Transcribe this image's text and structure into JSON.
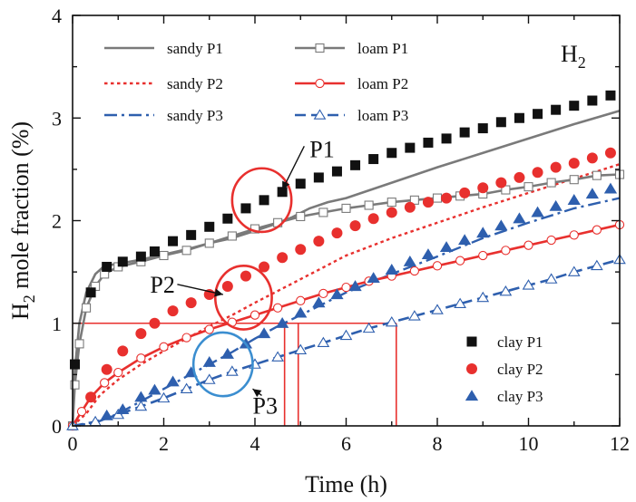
{
  "chart_data": {
    "type": "line",
    "title": "H2",
    "title_sub": "2",
    "xlabel": "Time (h)",
    "ylabel": "H",
    "ylabel_sub": "2",
    "ylabel_rest": " mole fraction (%)",
    "xlim": [
      0,
      12
    ],
    "ylim": [
      0,
      4
    ],
    "xticks": [
      0,
      2,
      4,
      6,
      8,
      10,
      12
    ],
    "yticks": [
      0,
      1,
      2,
      3,
      4
    ],
    "xtick_labels": [
      "0",
      "2",
      "4",
      "6",
      "8",
      "10",
      "12"
    ],
    "ytick_labels": [
      "0",
      "1",
      "2",
      "3",
      "4"
    ],
    "series": [
      {
        "name": "sandy P1",
        "label": "sandy P1",
        "style": "solid",
        "color": "#7a7a7a",
        "x": [
          0,
          0.05,
          0.15,
          0.3,
          0.5,
          0.7,
          1.0,
          1.5,
          2.0,
          2.5,
          3.0,
          3.5,
          4.0,
          4.4,
          4.8,
          5.2,
          5.6,
          6.0,
          7,
          8,
          9,
          10,
          11,
          12
        ],
        "y": [
          0,
          0.55,
          1.0,
          1.3,
          1.48,
          1.56,
          1.58,
          1.62,
          1.67,
          1.72,
          1.78,
          1.83,
          1.9,
          1.96,
          2.03,
          2.12,
          2.18,
          2.22,
          2.37,
          2.52,
          2.66,
          2.8,
          2.94,
          3.07
        ]
      },
      {
        "name": "sandy P2",
        "label": "sandy P2",
        "style": "dot",
        "color": "#e8302e",
        "x": [
          0,
          0.3,
          0.6,
          1.0,
          1.5,
          2.0,
          2.5,
          3.0,
          3.5,
          4.0,
          5,
          6,
          7,
          8,
          9,
          10,
          11,
          12
        ],
        "y": [
          0,
          0.12,
          0.3,
          0.45,
          0.6,
          0.73,
          0.85,
          0.97,
          1.08,
          1.2,
          1.43,
          1.66,
          1.83,
          1.98,
          2.13,
          2.27,
          2.41,
          2.55
        ]
      },
      {
        "name": "sandy P3",
        "label": "sandy P3",
        "style": "dashdot",
        "color": "#2e5fae",
        "x": [
          0,
          0.5,
          1,
          1.5,
          2,
          2.5,
          3,
          3.5,
          4,
          4.5,
          5,
          6,
          7,
          8,
          9,
          10,
          11,
          12
        ],
        "y": [
          0,
          0.03,
          0.12,
          0.24,
          0.36,
          0.48,
          0.6,
          0.72,
          0.85,
          0.97,
          1.08,
          1.3,
          1.48,
          1.65,
          1.83,
          1.98,
          2.12,
          2.22
        ]
      },
      {
        "name": "loam P1",
        "label": "loam P1",
        "style": "solid-square-open",
        "color": "#7a7a7a",
        "x": [
          0,
          0.05,
          0.15,
          0.3,
          0.5,
          0.7,
          1.0,
          1.5,
          2.0,
          2.5,
          3.0,
          3.5,
          4.0,
          4.5,
          5,
          5.5,
          6,
          6.5,
          7,
          7.5,
          8,
          8.5,
          9,
          9.5,
          10,
          10.5,
          11,
          11.5,
          12
        ],
        "y": [
          0,
          0.4,
          0.8,
          1.15,
          1.36,
          1.48,
          1.55,
          1.6,
          1.66,
          1.71,
          1.78,
          1.85,
          1.92,
          1.98,
          2.04,
          2.08,
          2.12,
          2.15,
          2.18,
          2.2,
          2.22,
          2.24,
          2.26,
          2.3,
          2.33,
          2.37,
          2.4,
          2.44,
          2.45
        ]
      },
      {
        "name": "loam P2",
        "label": "loam P2",
        "style": "solid-circle-open",
        "color": "#e8302e",
        "x": [
          0,
          0.2,
          0.4,
          0.7,
          1.0,
          1.5,
          2.0,
          2.5,
          3.0,
          3.5,
          4.0,
          4.5,
          5,
          5.5,
          6,
          6.5,
          7,
          7.5,
          8,
          8.5,
          9,
          9.5,
          10,
          10.5,
          11,
          11.5,
          12
        ],
        "y": [
          0,
          0.14,
          0.28,
          0.42,
          0.52,
          0.66,
          0.77,
          0.86,
          0.94,
          1.01,
          1.08,
          1.15,
          1.22,
          1.29,
          1.35,
          1.41,
          1.46,
          1.51,
          1.56,
          1.61,
          1.66,
          1.71,
          1.76,
          1.81,
          1.86,
          1.91,
          1.96
        ]
      },
      {
        "name": "loam P3",
        "label": "loam P3",
        "style": "dash-triangle-open",
        "color": "#2e5fae",
        "x": [
          0,
          0.5,
          1,
          1.5,
          2,
          2.5,
          3,
          3.5,
          4,
          4.5,
          5,
          5.5,
          6,
          6.5,
          7,
          7.5,
          8,
          8.5,
          9,
          9.5,
          10,
          10.5,
          11,
          11.5,
          12
        ],
        "y": [
          0,
          0.04,
          0.11,
          0.19,
          0.27,
          0.36,
          0.45,
          0.53,
          0.6,
          0.67,
          0.74,
          0.81,
          0.88,
          0.95,
          1.01,
          1.07,
          1.13,
          1.19,
          1.25,
          1.31,
          1.37,
          1.43,
          1.5,
          1.56,
          1.62
        ]
      },
      {
        "name": "clay P1",
        "label": "clay P1",
        "style": "marker-square-filled",
        "color": "#111111",
        "x": [
          0.05,
          0.4,
          0.75,
          1.1,
          1.5,
          1.8,
          2.2,
          2.6,
          3,
          3.4,
          3.8,
          4.2,
          4.6,
          5,
          5.4,
          5.8,
          6.2,
          6.6,
          7,
          7.4,
          7.8,
          8.2,
          8.6,
          9,
          9.4,
          9.8,
          10.2,
          10.6,
          11,
          11.4,
          11.8
        ],
        "y": [
          0.6,
          1.3,
          1.55,
          1.6,
          1.65,
          1.7,
          1.8,
          1.86,
          1.94,
          2.02,
          2.12,
          2.2,
          2.28,
          2.36,
          2.42,
          2.48,
          2.54,
          2.6,
          2.66,
          2.71,
          2.76,
          2.8,
          2.86,
          2.9,
          2.96,
          3.0,
          3.04,
          3.08,
          3.12,
          3.17,
          3.22
        ]
      },
      {
        "name": "clay P2",
        "label": "clay P2",
        "style": "marker-circle-filled",
        "color": "#e8302e",
        "x": [
          0.4,
          0.75,
          1.1,
          1.5,
          1.8,
          2.2,
          2.6,
          3,
          3.4,
          3.8,
          4.2,
          4.6,
          5,
          5.4,
          5.8,
          6.2,
          6.6,
          7,
          7.4,
          7.8,
          8.2,
          8.6,
          9,
          9.4,
          9.8,
          10.2,
          10.6,
          11,
          11.4,
          11.8
        ],
        "y": [
          0.28,
          0.55,
          0.73,
          0.9,
          1.0,
          1.12,
          1.2,
          1.28,
          1.36,
          1.46,
          1.55,
          1.64,
          1.72,
          1.8,
          1.88,
          1.95,
          2.02,
          2.08,
          2.13,
          2.18,
          2.22,
          2.27,
          2.32,
          2.37,
          2.42,
          2.47,
          2.52,
          2.56,
          2.61,
          2.66
        ]
      },
      {
        "name": "clay P3",
        "label": "clay P3",
        "style": "marker-triangle-filled",
        "color": "#2e5fae",
        "x": [
          0.75,
          1.1,
          1.5,
          1.8,
          2.2,
          2.6,
          3,
          3.4,
          3.8,
          4.2,
          4.6,
          5,
          5.4,
          5.8,
          6.2,
          6.6,
          7,
          7.4,
          7.8,
          8.2,
          8.6,
          9,
          9.4,
          9.8,
          10.2,
          10.6,
          11,
          11.4,
          11.8
        ],
        "y": [
          0.1,
          0.16,
          0.28,
          0.35,
          0.43,
          0.52,
          0.62,
          0.7,
          0.8,
          0.9,
          1.0,
          1.1,
          1.2,
          1.28,
          1.36,
          1.44,
          1.52,
          1.6,
          1.67,
          1.74,
          1.81,
          1.88,
          1.95,
          2.02,
          2.08,
          2.14,
          2.2,
          2.26,
          2.31
        ]
      }
    ],
    "reference_lines": {
      "color": "#e8302e",
      "hline": {
        "y": 1.0,
        "x_from": 0,
        "x_to": 7.1
      },
      "vlines": [
        4.65,
        4.95,
        7.1
      ]
    },
    "annotations": [
      {
        "name": "p1",
        "text": "P1",
        "text_at": [
          5.2,
          2.62
        ],
        "arrow_to": [
          4.6,
          2.3
        ],
        "ellipse_center": [
          4.15,
          2.2
        ],
        "ellipse_r": [
          0.65,
          0.31
        ],
        "ellipse_color": "#e8302e"
      },
      {
        "name": "p2",
        "text": "P2",
        "text_at": [
          1.7,
          1.3
        ],
        "arrow_to": [
          3.3,
          1.28
        ],
        "ellipse_center": [
          3.75,
          1.25
        ],
        "ellipse_r": [
          0.62,
          0.31
        ],
        "ellipse_color": "#e8302e"
      },
      {
        "name": "p3",
        "text": "P3",
        "text_at": [
          3.95,
          0.12
        ],
        "arrow_to": [
          3.95,
          0.36
        ],
        "ellipse_center": [
          3.3,
          0.6
        ],
        "ellipse_r": [
          0.65,
          0.31
        ],
        "ellipse_color": "#3b8ed0"
      }
    ],
    "legend_upper": "top-left",
    "legend_lower": "bottom-right",
    "grid": false
  }
}
